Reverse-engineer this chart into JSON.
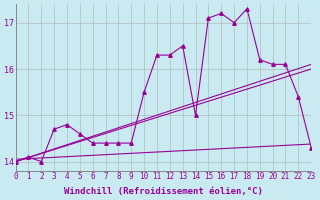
{
  "background_color": "#c8eaf0",
  "grid_color": "#aaaaaa",
  "line_color": "#990099",
  "xlim": [
    0,
    23
  ],
  "ylim": [
    13.8,
    17.4
  ],
  "yticks": [
    14,
    15,
    16,
    17
  ],
  "xticks": [
    0,
    1,
    2,
    3,
    4,
    5,
    6,
    7,
    8,
    9,
    10,
    11,
    12,
    13,
    14,
    15,
    16,
    17,
    18,
    19,
    20,
    21,
    22,
    23
  ],
  "xlabel": "Windchill (Refroidissement éolien,°C)",
  "xlabel_fontsize": 6.5,
  "tick_fontsize": 5.5,
  "ytick_fontsize": 6,
  "series": [
    [
      14.0,
      14.1,
      14.0,
      14.7,
      14.8,
      14.6,
      14.4,
      14.4,
      14.4,
      14.4,
      15.5,
      16.3,
      16.3,
      16.5,
      15.0,
      17.1,
      17.2,
      17.0,
      17.3,
      16.2,
      16.1,
      16.1,
      15.4,
      14.3
    ],
    [
      14.0,
      14.1,
      14.0,
      14.7,
      14.8,
      14.6,
      14.4,
      14.4,
      14.4,
      14.4,
      15.5,
      16.3,
      16.3,
      16.5,
      15.0,
      17.1,
      17.2,
      17.0,
      17.3,
      16.2,
      16.1,
      16.1,
      15.4,
      14.3
    ],
    [
      14.0,
      14.1,
      14.0,
      14.7,
      14.8,
      14.6,
      14.4,
      14.4,
      14.4,
      14.4,
      15.5,
      16.3,
      16.3,
      16.5,
      15.0,
      17.1,
      17.2,
      17.0,
      17.3,
      16.2,
      16.1,
      16.1,
      15.4,
      14.3
    ]
  ],
  "trend_lines": [
    {
      "x": [
        0,
        23
      ],
      "y": [
        14.0,
        16.1
      ]
    },
    {
      "x": [
        0,
        23
      ],
      "y": [
        14.0,
        16.0
      ]
    },
    {
      "x": [
        0,
        23
      ],
      "y": [
        14.05,
        14.38
      ]
    }
  ]
}
